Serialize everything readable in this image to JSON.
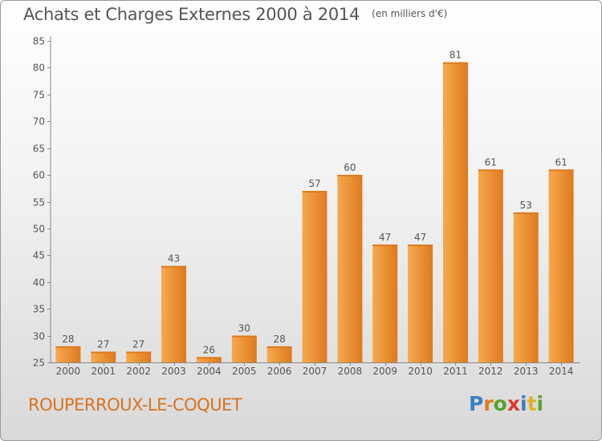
{
  "header": {
    "title": "Achats et Charges Externes 2000 à 2014",
    "unit": "(en milliers d'€)"
  },
  "footer": {
    "town": "ROUPERROUX-LE-COQUET",
    "brand_letters": [
      {
        "char": "P",
        "color": "#3a7fc4"
      },
      {
        "char": "r",
        "color": "#e07a22"
      },
      {
        "char": "o",
        "color": "#55a52e"
      },
      {
        "char": "x",
        "color": "#d93a2b"
      },
      {
        "char": "i",
        "color": "#3a7fc4"
      },
      {
        "char": "t",
        "color": "#e0b21f"
      },
      {
        "char": "i",
        "color": "#55a52e"
      }
    ]
  },
  "colors": {
    "bar_light": "#f6a94f",
    "bar_dark": "#de7a1d",
    "text": "#555555",
    "town": "#d9731f"
  },
  "chart_data": {
    "type": "bar",
    "title": "Achats et Charges Externes 2000 à 2014",
    "subtitle": "(en milliers d'€)",
    "categories": [
      "2000",
      "2001",
      "2002",
      "2003",
      "2004",
      "2005",
      "2006",
      "2007",
      "2008",
      "2009",
      "2010",
      "2011",
      "2012",
      "2013",
      "2014"
    ],
    "values": [
      28,
      27,
      27,
      43,
      26,
      30,
      28,
      57,
      60,
      47,
      47,
      81,
      61,
      53,
      61
    ],
    "ylim": [
      25,
      85
    ],
    "yticks": [
      25,
      30,
      35,
      40,
      45,
      50,
      55,
      60,
      65,
      70,
      75,
      80,
      85
    ],
    "grid": false,
    "legend": "none"
  }
}
